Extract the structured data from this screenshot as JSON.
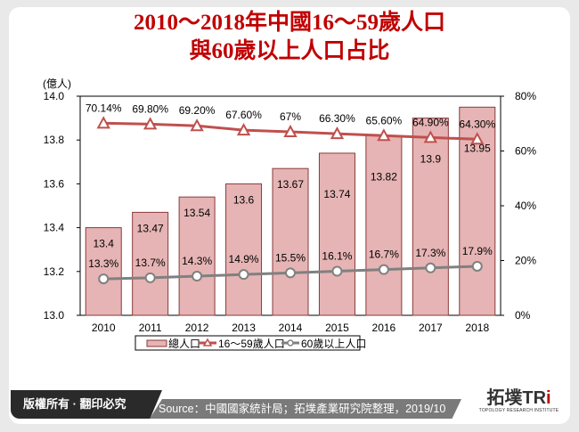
{
  "title_lines": [
    "2010～2018年中國16～59歲人口",
    "與60歲以上人口占比"
  ],
  "footer": {
    "copyright": "版權所有 · 翻印必究",
    "source": "Source：中國國家統計局；拓墣產業研究院整理，2019/10",
    "logo_text": "拓墣TRi",
    "logo_sub": "TOPOLOGY RESEARCH INSTITUTE"
  },
  "chart_data": {
    "type": "bar+line",
    "categories": [
      "2010",
      "2011",
      "2012",
      "2013",
      "2014",
      "2015",
      "2016",
      "2017",
      "2018"
    ],
    "ylabel_left": "(億人)",
    "ylim_left": [
      13.0,
      14.0
    ],
    "yticks_left": [
      "13.0",
      "13.2",
      "13.4",
      "13.6",
      "13.8",
      "14.0"
    ],
    "ylim_right": [
      0,
      80
    ],
    "yticks_right": [
      "0%",
      "20%",
      "40%",
      "60%",
      "80%"
    ],
    "series": [
      {
        "name": "總人口",
        "type": "bar",
        "axis": "left",
        "color": "#e6b4b4",
        "values": [
          13.4,
          13.47,
          13.54,
          13.6,
          13.67,
          13.74,
          13.82,
          13.9,
          13.95
        ],
        "labels": [
          "13.4",
          "13.47",
          "13.54",
          "13.6",
          "13.67",
          "13.74",
          "13.82",
          "13.9",
          "13.95"
        ]
      },
      {
        "name": "16～59歲人口",
        "type": "line",
        "axis": "right",
        "color": "#c0504d",
        "marker": "triangle",
        "values": [
          70.14,
          69.8,
          69.2,
          67.6,
          67,
          66.3,
          65.6,
          64.9,
          64.3
        ],
        "labels": [
          "70.14%",
          "69.80%",
          "69.20%",
          "67.60%",
          "67%",
          "66.30%",
          "65.60%",
          "64.90%",
          "64.30%"
        ]
      },
      {
        "name": "60歲以上人口",
        "type": "line",
        "axis": "right",
        "color": "#808080",
        "marker": "circle",
        "values": [
          13.3,
          13.7,
          14.3,
          14.9,
          15.5,
          16.1,
          16.7,
          17.3,
          17.9
        ],
        "labels": [
          "13.3%",
          "13.7%",
          "14.3%",
          "14.9%",
          "15.5%",
          "16.1%",
          "16.7%",
          "17.3%",
          "17.9%"
        ]
      }
    ],
    "legend": "bottom"
  }
}
